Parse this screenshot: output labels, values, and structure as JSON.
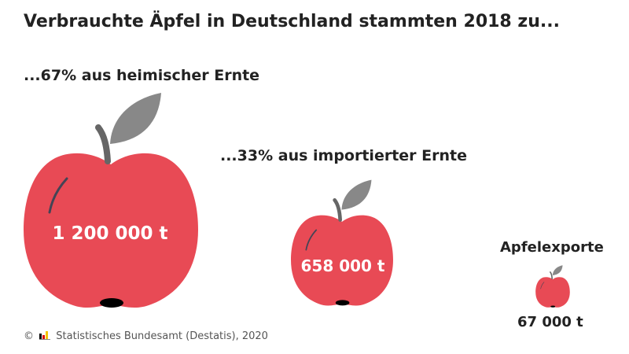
{
  "title": "Verbrauchte Äpfel in Deutschland stammten 2018 zu...",
  "source": "Statistisches Bundesamt (Destatis), 2020",
  "copyright": "©",
  "colors": {
    "apple": "#e84a55",
    "leaf": "#888888",
    "stem": "#666666",
    "highlight": "#444455",
    "text": "#222222"
  },
  "chart_data": {
    "type": "pictogram",
    "title": "Verbrauchte Äpfel in Deutschland stammten 2018 zu...",
    "unit": "t",
    "items": [
      {
        "name": "heimische Ernte",
        "heading": "...67% aus heimischer Ernte",
        "share_percent": 67,
        "value": 1200000,
        "label": "1 200 000 t"
      },
      {
        "name": "importierte Ernte",
        "heading": "...33% aus importierter Ernte",
        "share_percent": 33,
        "value": 658000,
        "label": "658 000 t"
      },
      {
        "name": "Apfelexporte",
        "heading": "Apfelexporte",
        "value": 67000,
        "label": "67 000 t"
      }
    ]
  }
}
